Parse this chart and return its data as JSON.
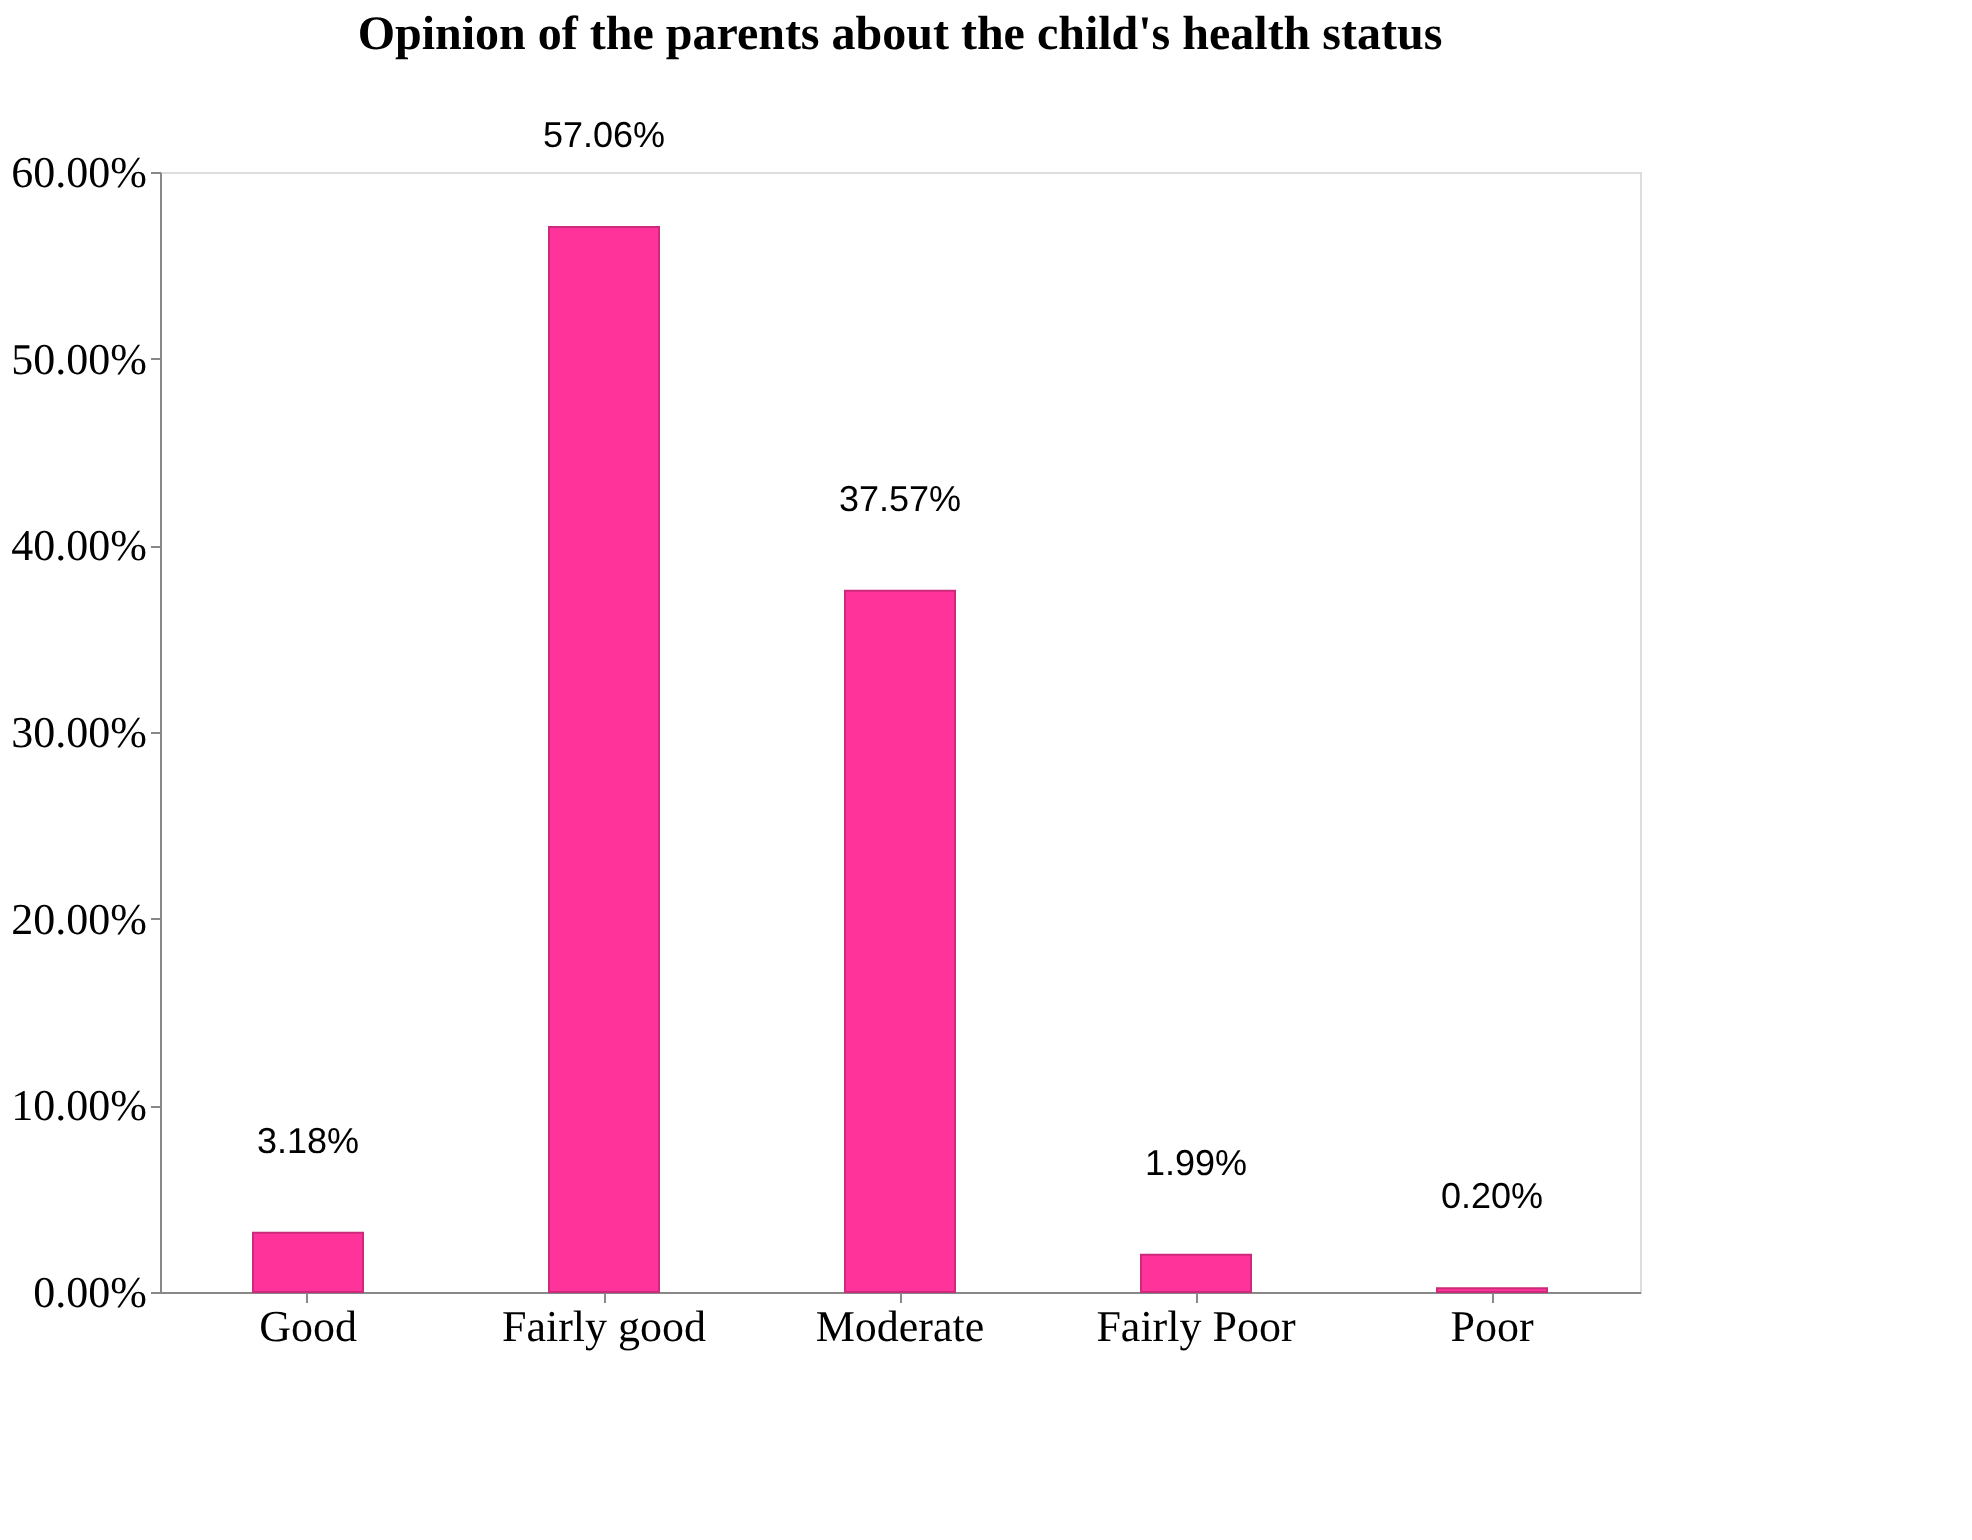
{
  "chart_data": {
    "type": "bar",
    "title": "Opinion of the parents about  the child's  health status",
    "categories": [
      "Good",
      "Fairly good",
      "Moderate",
      "Fairly Poor",
      "Poor"
    ],
    "values": [
      3.18,
      57.06,
      37.57,
      1.99,
      0.2
    ],
    "value_labels": [
      "3.18%",
      "57.06%",
      "37.57%",
      "1.99%",
      "0.20%"
    ],
    "color": "#ff3399",
    "ylim": [
      0,
      60
    ],
    "yticks": [
      {
        "value": 0,
        "label": "0.00%"
      },
      {
        "value": 10,
        "label": "10.00%"
      },
      {
        "value": 20,
        "label": "20.00%"
      },
      {
        "value": 30,
        "label": "30.00%"
      },
      {
        "value": 40,
        "label": "40.00%"
      },
      {
        "value": 50,
        "label": "50.00%"
      },
      {
        "value": 60,
        "label": "60.00%"
      }
    ],
    "grid": false
  }
}
